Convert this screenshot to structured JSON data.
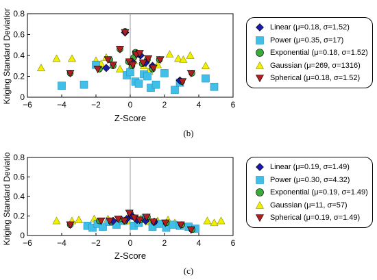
{
  "chart_data": [
    {
      "type": "scatter",
      "panel_label": "(b)",
      "xlabel": "Z-Score",
      "ylabel": "Kriging Standard Deviation",
      "xlim": [
        -6,
        6
      ],
      "ylim": [
        0,
        0.8
      ],
      "xticks": [
        "−6",
        "−4",
        "−2",
        "0",
        "2",
        "4",
        "6"
      ],
      "yticks": [
        "0",
        "0.2",
        "0.4",
        "0.6",
        "0.8"
      ],
      "grid": false,
      "legend_placement": "right",
      "series": [
        {
          "name": "Linear (μ=0.18, σ=1.52)",
          "marker": "diamond",
          "color": "#1a1aa8",
          "x": [
            -0.3,
            0.1,
            0.4,
            0.6,
            0.9,
            1.3,
            -1.4,
            2.9
          ],
          "y": [
            0.62,
            0.34,
            0.42,
            0.4,
            0.33,
            0.3,
            0.28,
            0.16
          ]
        },
        {
          "name": "Power (μ=0.35, σ=17)",
          "marker": "square",
          "color": "#40c0e8",
          "x": [
            -4.0,
            -2.7,
            -2.0,
            -0.2,
            0.0,
            0.3,
            0.5,
            0.8,
            1.0,
            1.2,
            1.5,
            2.0,
            2.6,
            2.9,
            4.4,
            4.9
          ],
          "y": [
            0.11,
            0.12,
            0.31,
            0.21,
            0.24,
            0.15,
            0.13,
            0.22,
            0.2,
            0.09,
            0.12,
            0.23,
            0.07,
            0.14,
            0.18,
            0.1
          ]
        },
        {
          "name": "Exponential (μ=0.18, σ=1.52)",
          "marker": "circle",
          "color": "#3aaa3a",
          "x": [
            -3.5,
            -1.8,
            -1.2,
            -1.0,
            -0.6,
            -0.3,
            -0.1,
            0.1,
            0.2,
            0.3,
            0.5,
            0.7,
            1.0,
            1.3,
            1.7,
            3.0,
            3.6
          ],
          "y": [
            0.23,
            0.27,
            0.36,
            0.3,
            0.46,
            0.63,
            0.34,
            0.3,
            0.38,
            0.43,
            0.41,
            0.32,
            0.36,
            0.27,
            0.36,
            0.15,
            0.23
          ]
        },
        {
          "name": "Gaussian (μ=269, σ=1316)",
          "marker": "triangle-up",
          "color": "#f0f000",
          "x": [
            -5.2,
            -4.3,
            -3.4,
            -2.0,
            -1.7,
            -1.4,
            -0.6,
            -0.1,
            0.2,
            0.8,
            1.1,
            1.6,
            2.3,
            2.8,
            3.1,
            3.5,
            4.4
          ],
          "y": [
            0.28,
            0.37,
            0.37,
            0.35,
            0.32,
            0.38,
            0.27,
            0.25,
            0.35,
            0.3,
            0.25,
            0.31,
            0.41,
            0.37,
            0.36,
            0.4,
            0.3
          ]
        },
        {
          "name": "Spherical (μ=0.18, σ=1.52)",
          "marker": "triangle-down",
          "color": "#b02020",
          "x": [
            -3.5,
            -1.9,
            -1.3,
            -1.0,
            -0.6,
            -0.3,
            -0.05,
            0.15,
            0.35,
            0.55,
            0.75,
            1.05,
            1.35,
            1.75,
            3.05,
            3.55
          ],
          "y": [
            0.23,
            0.27,
            0.36,
            0.31,
            0.46,
            0.62,
            0.34,
            0.31,
            0.41,
            0.42,
            0.33,
            0.37,
            0.28,
            0.36,
            0.15,
            0.23
          ]
        }
      ]
    },
    {
      "type": "scatter",
      "panel_label": "(c)",
      "xlabel": "Z-Score",
      "ylabel": "Kriging Standard Deviation",
      "xlim": [
        -6,
        6
      ],
      "ylim": [
        0,
        0.8
      ],
      "xticks": [
        "−6",
        "−4",
        "−2",
        "0",
        "2",
        "4",
        "6"
      ],
      "yticks": [
        "0",
        "0.2",
        "0.4",
        "0.6",
        "0.8"
      ],
      "grid": false,
      "legend_placement": "right",
      "series": [
        {
          "name": "Linear (μ=0.19, σ=1.49)",
          "marker": "diamond",
          "color": "#1a1aa8",
          "x": [
            -1.0,
            -0.2,
            0.1,
            0.4,
            0.9,
            1.4
          ],
          "y": [
            0.15,
            0.17,
            0.2,
            0.16,
            0.15,
            0.14
          ]
        },
        {
          "name": "Power (μ=0.30, σ=4.32)",
          "marker": "square",
          "color": "#40c0e8",
          "x": [
            -2.5,
            -2.2,
            -1.9,
            -1.6,
            -1.2,
            -0.8,
            -0.4,
            0.2,
            0.5,
            0.9,
            1.3,
            1.7,
            2.1,
            2.5,
            2.9,
            3.4,
            3.8
          ],
          "y": [
            0.1,
            0.08,
            0.12,
            0.09,
            0.14,
            0.11,
            0.15,
            0.1,
            0.13,
            0.18,
            0.09,
            0.12,
            0.08,
            0.11,
            0.1,
            0.09,
            0.07
          ]
        },
        {
          "name": "Exponential (μ=0.19, σ=1.49)",
          "marker": "circle",
          "color": "#3aaa3a",
          "x": [
            -3.5,
            -1.8,
            -1.1,
            -0.6,
            -0.3,
            0.0,
            0.3,
            0.6,
            1.0,
            1.4,
            2.1,
            3.0,
            3.6
          ],
          "y": [
            0.11,
            0.15,
            0.14,
            0.17,
            0.15,
            0.23,
            0.18,
            0.16,
            0.19,
            0.14,
            0.13,
            0.11,
            0.06
          ]
        },
        {
          "name": "Gaussian (μ=11, σ=57)",
          "marker": "triangle-up",
          "color": "#f0f000",
          "x": [
            -4.3,
            -3.4,
            -3.0,
            -2.1,
            -1.3,
            -0.7,
            -0.2,
            0.6,
            1.1,
            1.6,
            2.2,
            2.6,
            4.5,
            4.9,
            5.3
          ],
          "y": [
            0.15,
            0.15,
            0.16,
            0.17,
            0.17,
            0.16,
            0.15,
            0.17,
            0.14,
            0.15,
            0.16,
            0.13,
            0.15,
            0.13,
            0.15
          ]
        },
        {
          "name": "Spherical (μ=0.19, σ=1.49)",
          "marker": "triangle-down",
          "color": "#b02020",
          "x": [
            -3.5,
            -1.7,
            -1.2,
            -0.7,
            -0.35,
            -0.05,
            0.25,
            0.55,
            0.95,
            1.35,
            2.05,
            2.95,
            3.55
          ],
          "y": [
            0.11,
            0.15,
            0.15,
            0.17,
            0.15,
            0.23,
            0.18,
            0.16,
            0.19,
            0.14,
            0.13,
            0.11,
            0.06
          ]
        }
      ]
    }
  ]
}
